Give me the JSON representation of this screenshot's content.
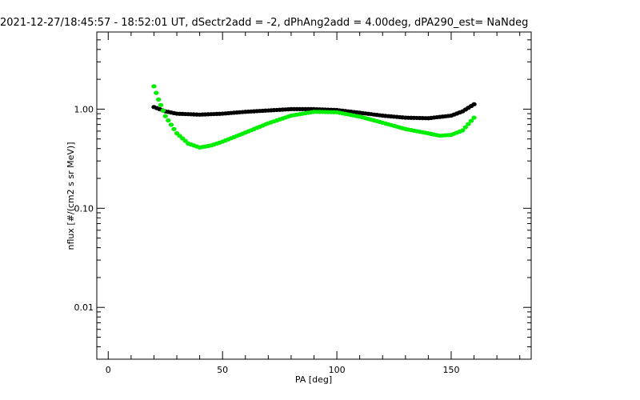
{
  "chart_data": {
    "type": "scatter",
    "title": "2021-12-27/18:45:57 - 18:52:01 UT, dSectr2add = -2, dPhAng2add = 4.00deg, dPA290_est=   NaNdeg",
    "xlabel": "PA [deg]",
    "ylabel": "nflux [#/(cm2 s sr MeV)]",
    "xlim": [
      -5,
      185
    ],
    "ylim": [
      0.003,
      6.0
    ],
    "yscale": "log",
    "grid": false,
    "x_ticks": [
      0,
      50,
      100,
      150
    ],
    "x_tick_labels": [
      "0",
      "50",
      "100",
      "150"
    ],
    "y_ticks": [
      0.01,
      0.1,
      1.0
    ],
    "y_tick_labels": [
      "0.01",
      "0.10",
      "1.00"
    ],
    "series": [
      {
        "color": "#000000",
        "x": [
          20,
          25,
          30,
          40,
          50,
          60,
          70,
          80,
          90,
          100,
          110,
          120,
          130,
          140,
          150,
          155,
          160
        ],
        "y": [
          1.05,
          0.95,
          0.9,
          0.88,
          0.9,
          0.94,
          0.97,
          1.0,
          1.0,
          0.98,
          0.92,
          0.86,
          0.82,
          0.81,
          0.86,
          0.95,
          1.12
        ]
      },
      {
        "color": "#00ee00",
        "x": [
          20,
          22,
          25,
          30,
          35,
          40,
          45,
          50,
          60,
          70,
          80,
          90,
          100,
          110,
          120,
          130,
          140,
          145,
          150,
          155,
          160
        ],
        "y": [
          1.7,
          1.25,
          0.85,
          0.57,
          0.45,
          0.41,
          0.43,
          0.47,
          0.58,
          0.72,
          0.86,
          0.94,
          0.93,
          0.84,
          0.73,
          0.63,
          0.57,
          0.54,
          0.55,
          0.61,
          0.82
        ]
      }
    ]
  }
}
